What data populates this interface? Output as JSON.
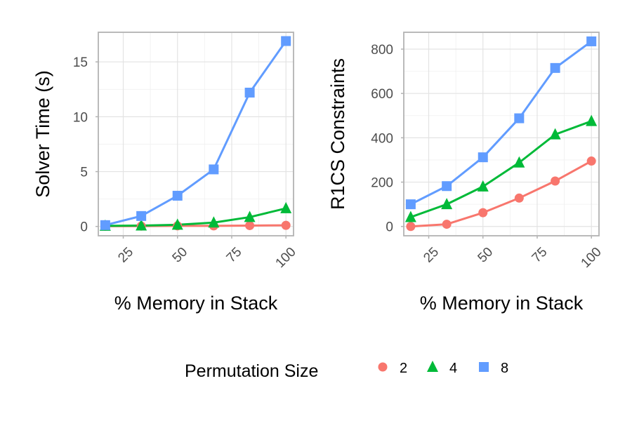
{
  "chart_data": [
    {
      "type": "line",
      "xlabel": "% Memory in Stack",
      "ylabel": "Solver Time (s)",
      "x": [
        16.7,
        33.3,
        50,
        66.7,
        83.3,
        100
      ],
      "xlim": [
        13.5,
        103.5
      ],
      "ylim": [
        -0.85,
        17.7
      ],
      "xticks": [
        25,
        50,
        75,
        100
      ],
      "yticks": [
        0,
        5,
        10,
        15
      ],
      "xminor": [
        37.5,
        62.5,
        87.5
      ],
      "yminor": [
        2.5,
        7.5,
        12.5
      ],
      "grid": true,
      "series": [
        {
          "name": "2",
          "marker": "circle",
          "color": "#F8766D",
          "values": [
            0.02,
            0.03,
            0.05,
            0.05,
            0.08,
            0.1
          ]
        },
        {
          "name": "4",
          "marker": "triangle",
          "color": "#00BA38",
          "values": [
            0.05,
            0.08,
            0.15,
            0.35,
            0.85,
            1.65
          ]
        },
        {
          "name": "8",
          "marker": "square",
          "color": "#619CFF",
          "values": [
            0.12,
            0.95,
            2.8,
            5.2,
            12.2,
            16.9
          ]
        }
      ]
    },
    {
      "type": "line",
      "xlabel": "% Memory in Stack",
      "ylabel": "R1CS Constraints",
      "x": [
        16.7,
        33.3,
        50,
        66.7,
        83.3,
        100
      ],
      "xlim": [
        13.5,
        103.5
      ],
      "ylim": [
        -42,
        876
      ],
      "xticks": [
        25,
        50,
        75,
        100
      ],
      "yticks": [
        0,
        200,
        400,
        600,
        800
      ],
      "xminor": [
        37.5,
        62.5,
        87.5
      ],
      "yminor": [
        100,
        300,
        500,
        700
      ],
      "grid": true,
      "series": [
        {
          "name": "2",
          "marker": "circle",
          "color": "#F8766D",
          "values": [
            0,
            10,
            62,
            128,
            205,
            295
          ]
        },
        {
          "name": "4",
          "marker": "triangle",
          "color": "#00BA38",
          "values": [
            42,
            100,
            180,
            288,
            415,
            475
          ]
        },
        {
          "name": "8",
          "marker": "square",
          "color": "#619CFF",
          "values": [
            100,
            182,
            312,
            488,
            715,
            835
          ]
        }
      ]
    }
  ],
  "legend": {
    "title": "Permutation Size",
    "position": "bottom",
    "items": [
      {
        "label": "2",
        "marker": "circle",
        "color": "#F8766D"
      },
      {
        "label": "4",
        "marker": "triangle",
        "color": "#00BA38"
      },
      {
        "label": "8",
        "marker": "square",
        "color": "#619CFF"
      }
    ]
  }
}
